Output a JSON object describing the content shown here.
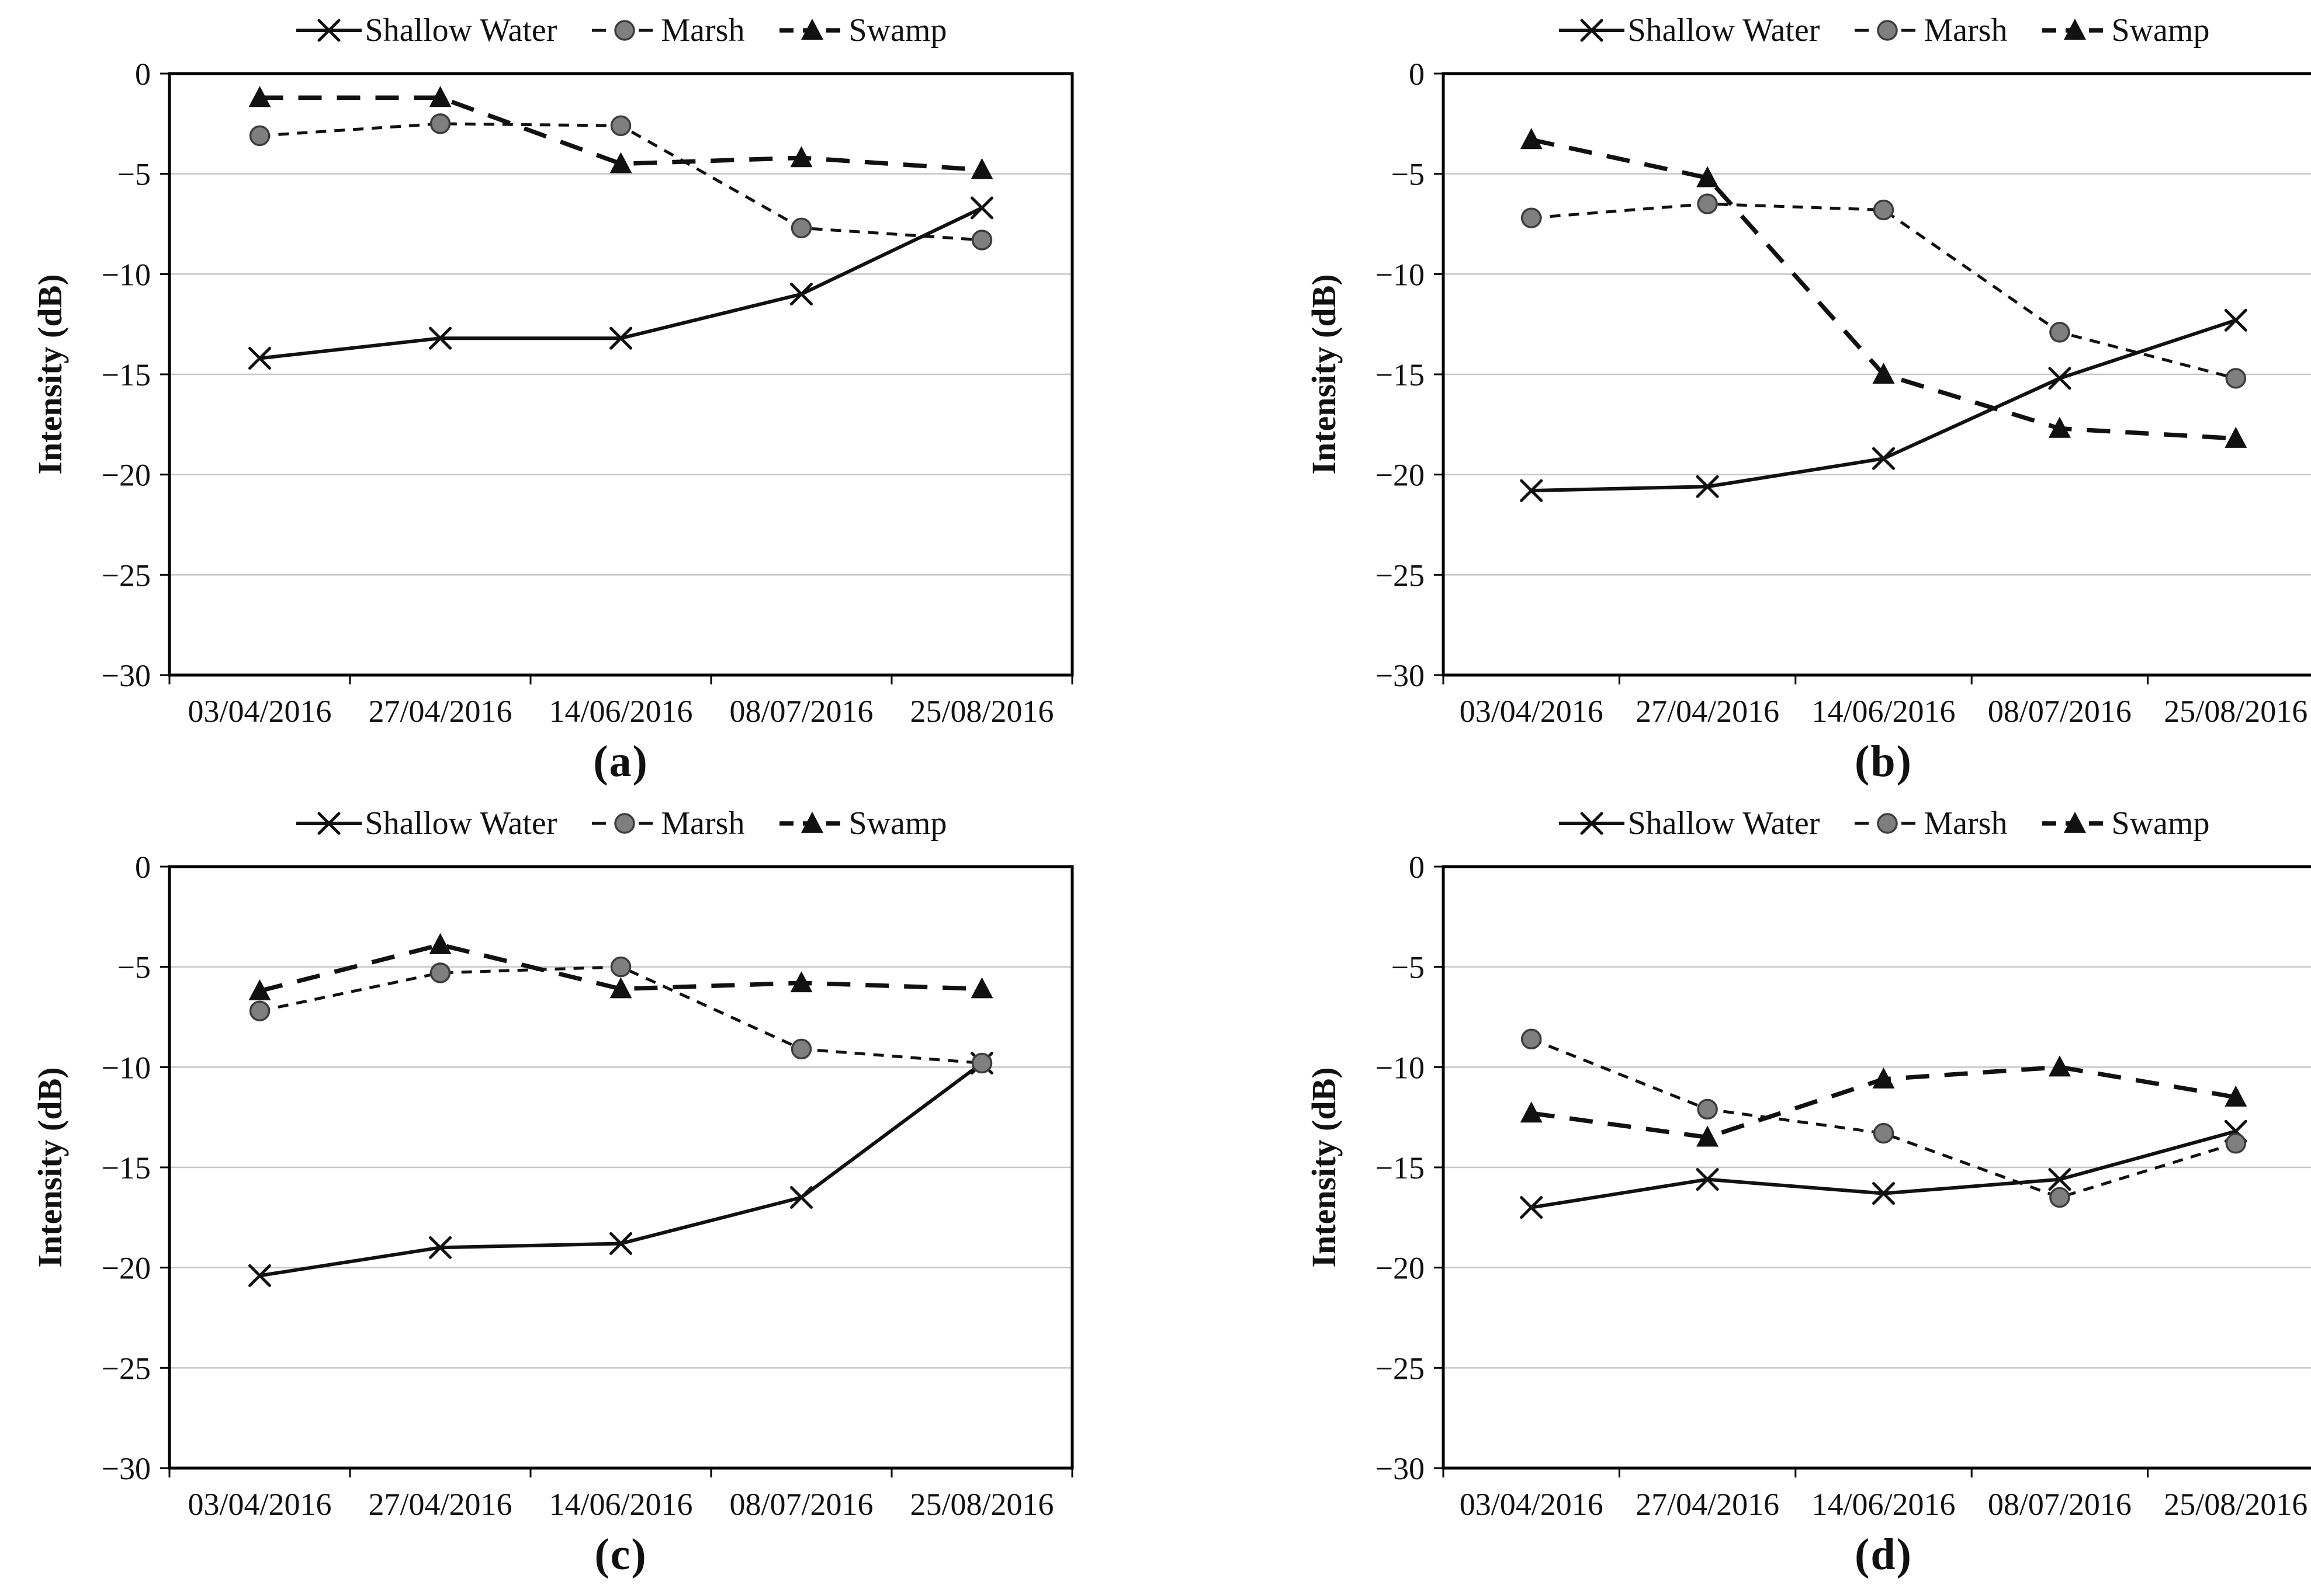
{
  "figure": {
    "description": "Four-panel line chart figure comparing backscatter intensity over time",
    "background": "#ffffff"
  },
  "colors": {
    "line_black": "#111111",
    "marsh_marker_fill": "#7f7f7f",
    "marsh_marker_stroke": "#3d3d3d",
    "gridline": "#c6c6c6",
    "plot_border": "#000000",
    "text": "#111111"
  },
  "chart_data": [
    {
      "id": "a",
      "caption": "(a)",
      "type": "line",
      "title": "",
      "xlabel": "",
      "ylabel": "Intensity (dB)",
      "ylim": [
        -30,
        0
      ],
      "yticks": [
        0,
        -5,
        -10,
        -15,
        -20,
        -25,
        -30
      ],
      "grid": "horizontal",
      "legend_position": "top",
      "categories": [
        "03/04/2016",
        "27/04/2016",
        "14/06/2016",
        "08/07/2016",
        "25/08/2016"
      ],
      "series": [
        {
          "name": "Shallow Water",
          "marker": "x",
          "line_style": "solid",
          "color": "#111111",
          "values": [
            -14.2,
            -13.2,
            -13.2,
            -11.0,
            -6.7
          ]
        },
        {
          "name": "Marsh",
          "marker": "circle",
          "line_style": "dash-short",
          "color": "#111111",
          "marker_fill": "#7f7f7f",
          "values": [
            -3.1,
            -2.5,
            -2.6,
            -7.7,
            -8.3
          ]
        },
        {
          "name": "Swamp",
          "marker": "triangle",
          "line_style": "dash-long",
          "color": "#111111",
          "marker_fill": "#111111",
          "values": [
            -1.2,
            -1.2,
            -4.5,
            -4.2,
            -4.8
          ]
        }
      ]
    },
    {
      "id": "b",
      "caption": "(b)",
      "type": "line",
      "title": "",
      "xlabel": "",
      "ylabel": "Intensity (dB)",
      "ylim": [
        -30,
        0
      ],
      "yticks": [
        0,
        -5,
        -10,
        -15,
        -20,
        -25,
        -30
      ],
      "grid": "horizontal",
      "legend_position": "top",
      "categories": [
        "03/04/2016",
        "27/04/2016",
        "14/06/2016",
        "08/07/2016",
        "25/08/2016"
      ],
      "series": [
        {
          "name": "Shallow Water",
          "marker": "x",
          "line_style": "solid",
          "color": "#111111",
          "values": [
            -20.8,
            -20.6,
            -19.2,
            -15.2,
            -12.3
          ]
        },
        {
          "name": "Marsh",
          "marker": "circle",
          "line_style": "dash-short",
          "color": "#111111",
          "marker_fill": "#7f7f7f",
          "values": [
            -7.2,
            -6.5,
            -6.8,
            -12.9,
            -15.2
          ]
        },
        {
          "name": "Swamp",
          "marker": "triangle",
          "line_style": "dash-long",
          "color": "#111111",
          "marker_fill": "#111111",
          "values": [
            -3.3,
            -5.2,
            -15.0,
            -17.7,
            -18.2
          ]
        }
      ]
    },
    {
      "id": "c",
      "caption": "(c)",
      "type": "line",
      "title": "",
      "xlabel": "",
      "ylabel": "Intensity (dB)",
      "ylim": [
        -30,
        0
      ],
      "yticks": [
        0,
        -5,
        -10,
        -15,
        -20,
        -25,
        -30
      ],
      "grid": "horizontal",
      "legend_position": "top",
      "categories": [
        "03/04/2016",
        "27/04/2016",
        "14/06/2016",
        "08/07/2016",
        "25/08/2016"
      ],
      "series": [
        {
          "name": "Shallow Water",
          "marker": "x",
          "line_style": "solid",
          "color": "#111111",
          "values": [
            -20.4,
            -19.0,
            -18.8,
            -16.5,
            -9.8
          ]
        },
        {
          "name": "Marsh",
          "marker": "circle",
          "line_style": "dash-short",
          "color": "#111111",
          "marker_fill": "#7f7f7f",
          "values": [
            -7.2,
            -5.3,
            -5.0,
            -9.1,
            -9.8
          ]
        },
        {
          "name": "Swamp",
          "marker": "triangle",
          "line_style": "dash-long",
          "color": "#111111",
          "marker_fill": "#111111",
          "values": [
            -6.2,
            -3.9,
            -6.1,
            -5.8,
            -6.1
          ]
        }
      ]
    },
    {
      "id": "d",
      "caption": "(d)",
      "type": "line",
      "title": "",
      "xlabel": "",
      "ylabel": "Intensity (dB)",
      "ylim": [
        -30,
        0
      ],
      "yticks": [
        0,
        -5,
        -10,
        -15,
        -20,
        -25,
        -30
      ],
      "grid": "horizontal",
      "legend_position": "top",
      "categories": [
        "03/04/2016",
        "27/04/2016",
        "14/06/2016",
        "08/07/2016",
        "25/08/2016"
      ],
      "series": [
        {
          "name": "Shallow Water",
          "marker": "x",
          "line_style": "solid",
          "color": "#111111",
          "values": [
            -17.0,
            -15.6,
            -16.3,
            -15.6,
            -13.2
          ]
        },
        {
          "name": "Marsh",
          "marker": "circle",
          "line_style": "dash-short",
          "color": "#111111",
          "marker_fill": "#7f7f7f",
          "values": [
            -8.6,
            -12.1,
            -13.3,
            -16.5,
            -13.8
          ]
        },
        {
          "name": "Swamp",
          "marker": "triangle",
          "line_style": "dash-long",
          "color": "#111111",
          "marker_fill": "#111111",
          "values": [
            -12.3,
            -13.5,
            -10.6,
            -10.0,
            -11.5
          ]
        }
      ]
    }
  ]
}
